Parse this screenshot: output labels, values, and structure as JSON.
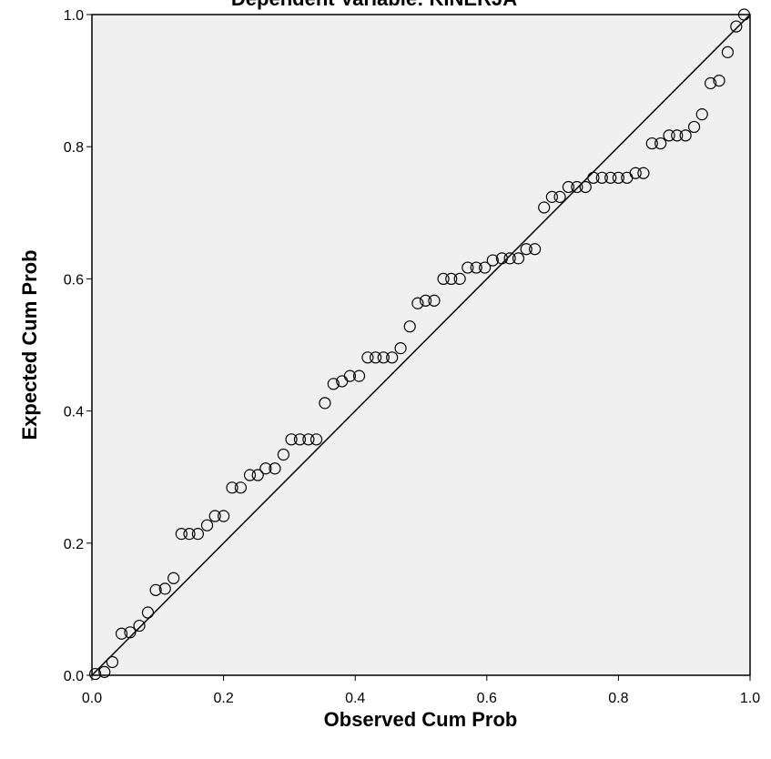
{
  "chart_data": {
    "type": "scatter",
    "title": "Dependent Variable: KINERJA",
    "xlabel": "Observed Cum Prob",
    "ylabel": "Expected Cum Prob",
    "xlim": [
      0,
      1
    ],
    "ylim": [
      0,
      1
    ],
    "xticks": [
      0.0,
      0.2,
      0.4,
      0.6,
      0.8,
      1.0
    ],
    "yticks": [
      0.0,
      0.2,
      0.4,
      0.6,
      0.8,
      1.0
    ],
    "xtick_labels": [
      "0.0",
      "0.2",
      "0.4",
      "0.6",
      "0.8",
      "1.0"
    ],
    "ytick_labels": [
      "0.0",
      "0.2",
      "0.4",
      "0.6",
      "0.8",
      "1.0"
    ],
    "reference_line": {
      "from": [
        0,
        0
      ],
      "to": [
        1,
        1
      ]
    },
    "plot_background": "#f0f0f0",
    "marker": "open-circle",
    "points": [
      [
        0.005,
        0.002
      ],
      [
        0.019,
        0.005
      ],
      [
        0.031,
        0.02
      ],
      [
        0.045,
        0.063
      ],
      [
        0.058,
        0.065
      ],
      [
        0.072,
        0.075
      ],
      [
        0.085,
        0.095
      ],
      [
        0.097,
        0.129
      ],
      [
        0.111,
        0.131
      ],
      [
        0.124,
        0.147
      ],
      [
        0.136,
        0.214
      ],
      [
        0.148,
        0.214
      ],
      [
        0.161,
        0.214
      ],
      [
        0.175,
        0.227
      ],
      [
        0.187,
        0.241
      ],
      [
        0.2,
        0.241
      ],
      [
        0.213,
        0.284
      ],
      [
        0.226,
        0.284
      ],
      [
        0.24,
        0.303
      ],
      [
        0.252,
        0.303
      ],
      [
        0.264,
        0.313
      ],
      [
        0.278,
        0.313
      ],
      [
        0.291,
        0.334
      ],
      [
        0.303,
        0.357
      ],
      [
        0.316,
        0.357
      ],
      [
        0.329,
        0.357
      ],
      [
        0.341,
        0.357
      ],
      [
        0.354,
        0.412
      ],
      [
        0.367,
        0.441
      ],
      [
        0.38,
        0.445
      ],
      [
        0.392,
        0.453
      ],
      [
        0.406,
        0.453
      ],
      [
        0.419,
        0.481
      ],
      [
        0.431,
        0.481
      ],
      [
        0.443,
        0.481
      ],
      [
        0.456,
        0.481
      ],
      [
        0.469,
        0.495
      ],
      [
        0.483,
        0.528
      ],
      [
        0.495,
        0.563
      ],
      [
        0.507,
        0.567
      ],
      [
        0.52,
        0.567
      ],
      [
        0.534,
        0.6
      ],
      [
        0.546,
        0.6
      ],
      [
        0.559,
        0.6
      ],
      [
        0.571,
        0.617
      ],
      [
        0.584,
        0.617
      ],
      [
        0.597,
        0.617
      ],
      [
        0.609,
        0.628
      ],
      [
        0.623,
        0.631
      ],
      [
        0.635,
        0.631
      ],
      [
        0.648,
        0.631
      ],
      [
        0.66,
        0.645
      ],
      [
        0.673,
        0.645
      ],
      [
        0.687,
        0.708
      ],
      [
        0.699,
        0.724
      ],
      [
        0.711,
        0.724
      ],
      [
        0.724,
        0.739
      ],
      [
        0.737,
        0.739
      ],
      [
        0.75,
        0.739
      ],
      [
        0.762,
        0.753
      ],
      [
        0.775,
        0.753
      ],
      [
        0.788,
        0.753
      ],
      [
        0.8,
        0.753
      ],
      [
        0.813,
        0.753
      ],
      [
        0.826,
        0.76
      ],
      [
        0.838,
        0.76
      ],
      [
        0.851,
        0.805
      ],
      [
        0.864,
        0.805
      ],
      [
        0.877,
        0.817
      ],
      [
        0.889,
        0.817
      ],
      [
        0.902,
        0.817
      ],
      [
        0.915,
        0.83
      ],
      [
        0.927,
        0.849
      ],
      [
        0.94,
        0.896
      ],
      [
        0.953,
        0.9
      ],
      [
        0.966,
        0.943
      ],
      [
        0.979,
        0.982
      ],
      [
        0.991,
        1.0
      ]
    ]
  }
}
